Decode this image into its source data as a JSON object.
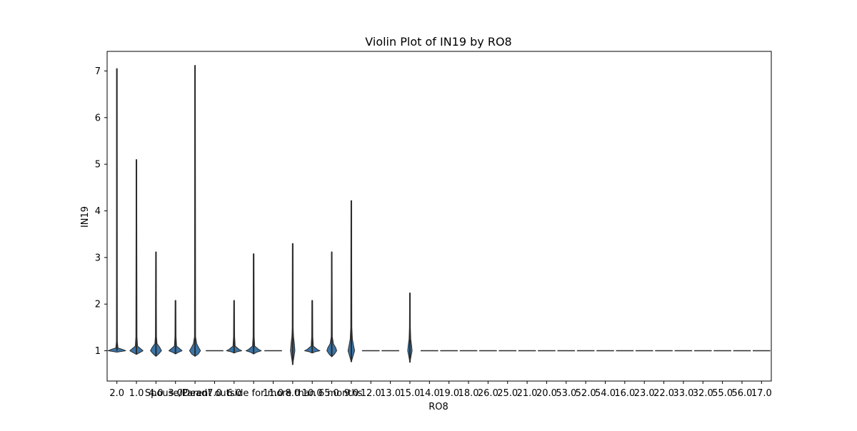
{
  "chart_data": {
    "type": "violin",
    "title": "Violin Plot of IN19 by RO8",
    "xlabel": "RO8",
    "ylabel": "IN19",
    "ylim": [
      0.35,
      7.42
    ],
    "yticks": [
      1,
      2,
      3,
      4,
      5,
      6,
      7
    ],
    "grid": false,
    "legend": "none",
    "colors": {
      "violin_fill": "#3a75a8",
      "violin_edge": "#2b2b2b",
      "axis": "#000000"
    },
    "categories": [
      "2.0",
      "1.0",
      "4.0",
      "3.0",
      "Dead",
      "7.0",
      "6.0",
      "Spouse/Parent outside for more than 6 months",
      "11.0",
      "8.0",
      "10.0",
      "5.0",
      "9.0",
      "12.0",
      "13.0",
      "15.0",
      "14.0",
      "19.0",
      "18.0",
      "26.0",
      "25.0",
      "21.0",
      "20.0",
      "53.0",
      "52.0",
      "54.0",
      "16.0",
      "23.0",
      "22.0",
      "33.0",
      "32.0",
      "55.0",
      "56.0",
      "17.0"
    ],
    "violins": [
      {
        "category": "2.0",
        "min": 1.0,
        "max": 7.05,
        "profile": [
          [
            0.97,
            0
          ],
          [
            1.0,
            16
          ],
          [
            1.03,
            10
          ],
          [
            1.06,
            2
          ],
          [
            1.2,
            0.8
          ],
          [
            2.5,
            0.6
          ],
          [
            7.05,
            0.5
          ]
        ]
      },
      {
        "category": "1.0",
        "min": 0.92,
        "max": 5.1,
        "profile": [
          [
            0.92,
            0
          ],
          [
            0.96,
            6
          ],
          [
            1.0,
            12
          ],
          [
            1.04,
            8
          ],
          [
            1.1,
            2
          ],
          [
            1.3,
            1
          ],
          [
            5.1,
            0.5
          ]
        ]
      },
      {
        "category": "4.0",
        "min": 0.88,
        "max": 3.12,
        "profile": [
          [
            0.88,
            0
          ],
          [
            0.93,
            5
          ],
          [
            1.0,
            10
          ],
          [
            1.07,
            7
          ],
          [
            1.15,
            2
          ],
          [
            1.3,
            1
          ],
          [
            3.12,
            0.5
          ]
        ]
      },
      {
        "category": "3.0",
        "min": 0.93,
        "max": 2.08,
        "profile": [
          [
            0.93,
            0
          ],
          [
            0.97,
            6
          ],
          [
            1.0,
            12
          ],
          [
            1.03,
            9
          ],
          [
            1.1,
            2
          ],
          [
            1.3,
            1
          ],
          [
            2.08,
            0.5
          ]
        ]
      },
      {
        "category": "Dead",
        "min": 0.88,
        "max": 7.12,
        "profile": [
          [
            0.88,
            0
          ],
          [
            0.93,
            6
          ],
          [
            1.0,
            10
          ],
          [
            1.06,
            7
          ],
          [
            1.15,
            3
          ],
          [
            1.3,
            1
          ],
          [
            7.12,
            0.5
          ]
        ]
      },
      {
        "category": "7.0",
        "min": 1.0,
        "max": 1.0,
        "profile": []
      },
      {
        "category": "6.0",
        "min": 0.95,
        "max": 2.08,
        "profile": [
          [
            0.95,
            0
          ],
          [
            0.98,
            6
          ],
          [
            1.0,
            14
          ],
          [
            1.03,
            9
          ],
          [
            1.1,
            2
          ],
          [
            1.3,
            1
          ],
          [
            2.08,
            0.5
          ]
        ]
      },
      {
        "category": "Spouse/Parent outside for more than 6 months",
        "min": 0.93,
        "max": 3.08,
        "profile": [
          [
            0.93,
            0
          ],
          [
            0.97,
            6
          ],
          [
            1.0,
            14
          ],
          [
            1.03,
            9
          ],
          [
            1.1,
            2
          ],
          [
            1.3,
            1
          ],
          [
            3.08,
            0.5
          ]
        ]
      },
      {
        "category": "11.0",
        "min": 1.0,
        "max": 1.0,
        "profile": []
      },
      {
        "category": "8.0",
        "min": 0.7,
        "max": 3.3,
        "profile": [
          [
            0.7,
            0
          ],
          [
            0.85,
            2
          ],
          [
            1.0,
            4
          ],
          [
            1.15,
            3
          ],
          [
            1.3,
            1.5
          ],
          [
            1.5,
            0.8
          ],
          [
            3.3,
            0.5
          ]
        ]
      },
      {
        "category": "10.0",
        "min": 0.95,
        "max": 2.08,
        "profile": [
          [
            0.95,
            0
          ],
          [
            0.98,
            6
          ],
          [
            1.0,
            14
          ],
          [
            1.03,
            9
          ],
          [
            1.1,
            2
          ],
          [
            1.3,
            1
          ],
          [
            2.08,
            0.5
          ]
        ]
      },
      {
        "category": "5.0",
        "min": 0.87,
        "max": 3.12,
        "profile": [
          [
            0.87,
            0
          ],
          [
            0.93,
            5
          ],
          [
            1.0,
            9
          ],
          [
            1.07,
            7
          ],
          [
            1.15,
            3
          ],
          [
            1.3,
            1
          ],
          [
            3.12,
            0.5
          ]
        ]
      },
      {
        "category": "9.0",
        "min": 0.76,
        "max": 4.22,
        "profile": [
          [
            0.76,
            0
          ],
          [
            0.88,
            3
          ],
          [
            1.0,
            6
          ],
          [
            1.12,
            4
          ],
          [
            1.25,
            2
          ],
          [
            1.5,
            1
          ],
          [
            4.22,
            0.5
          ]
        ]
      },
      {
        "category": "12.0",
        "min": 1.0,
        "max": 1.0,
        "profile": []
      },
      {
        "category": "13.0",
        "min": 1.0,
        "max": 1.0,
        "profile": []
      },
      {
        "category": "15.0",
        "min": 0.75,
        "max": 2.24,
        "profile": [
          [
            0.75,
            0
          ],
          [
            0.88,
            2
          ],
          [
            1.0,
            4
          ],
          [
            1.12,
            3
          ],
          [
            1.25,
            1.5
          ],
          [
            1.5,
            0.8
          ],
          [
            2.24,
            0.5
          ]
        ]
      },
      {
        "category": "14.0",
        "min": 1.0,
        "max": 1.0,
        "profile": []
      },
      {
        "category": "19.0",
        "min": 1.0,
        "max": 1.0,
        "profile": []
      },
      {
        "category": "18.0",
        "min": 1.0,
        "max": 1.0,
        "profile": []
      },
      {
        "category": "26.0",
        "min": 1.0,
        "max": 1.0,
        "profile": []
      },
      {
        "category": "25.0",
        "min": 1.0,
        "max": 1.0,
        "profile": []
      },
      {
        "category": "21.0",
        "min": 1.0,
        "max": 1.0,
        "profile": []
      },
      {
        "category": "20.0",
        "min": 1.0,
        "max": 1.0,
        "profile": []
      },
      {
        "category": "53.0",
        "min": 1.0,
        "max": 1.0,
        "profile": []
      },
      {
        "category": "52.0",
        "min": 1.0,
        "max": 1.0,
        "profile": []
      },
      {
        "category": "54.0",
        "min": 1.0,
        "max": 1.0,
        "profile": []
      },
      {
        "category": "16.0",
        "min": 1.0,
        "max": 1.0,
        "profile": []
      },
      {
        "category": "23.0",
        "min": 1.0,
        "max": 1.0,
        "profile": []
      },
      {
        "category": "22.0",
        "min": 1.0,
        "max": 1.0,
        "profile": []
      },
      {
        "category": "33.0",
        "min": 1.0,
        "max": 1.0,
        "profile": []
      },
      {
        "category": "32.0",
        "min": 1.0,
        "max": 1.0,
        "profile": []
      },
      {
        "category": "55.0",
        "min": 1.0,
        "max": 1.0,
        "profile": []
      },
      {
        "category": "56.0",
        "min": 1.0,
        "max": 1.0,
        "profile": []
      },
      {
        "category": "17.0",
        "min": 1.0,
        "max": 1.0,
        "profile": []
      }
    ]
  }
}
